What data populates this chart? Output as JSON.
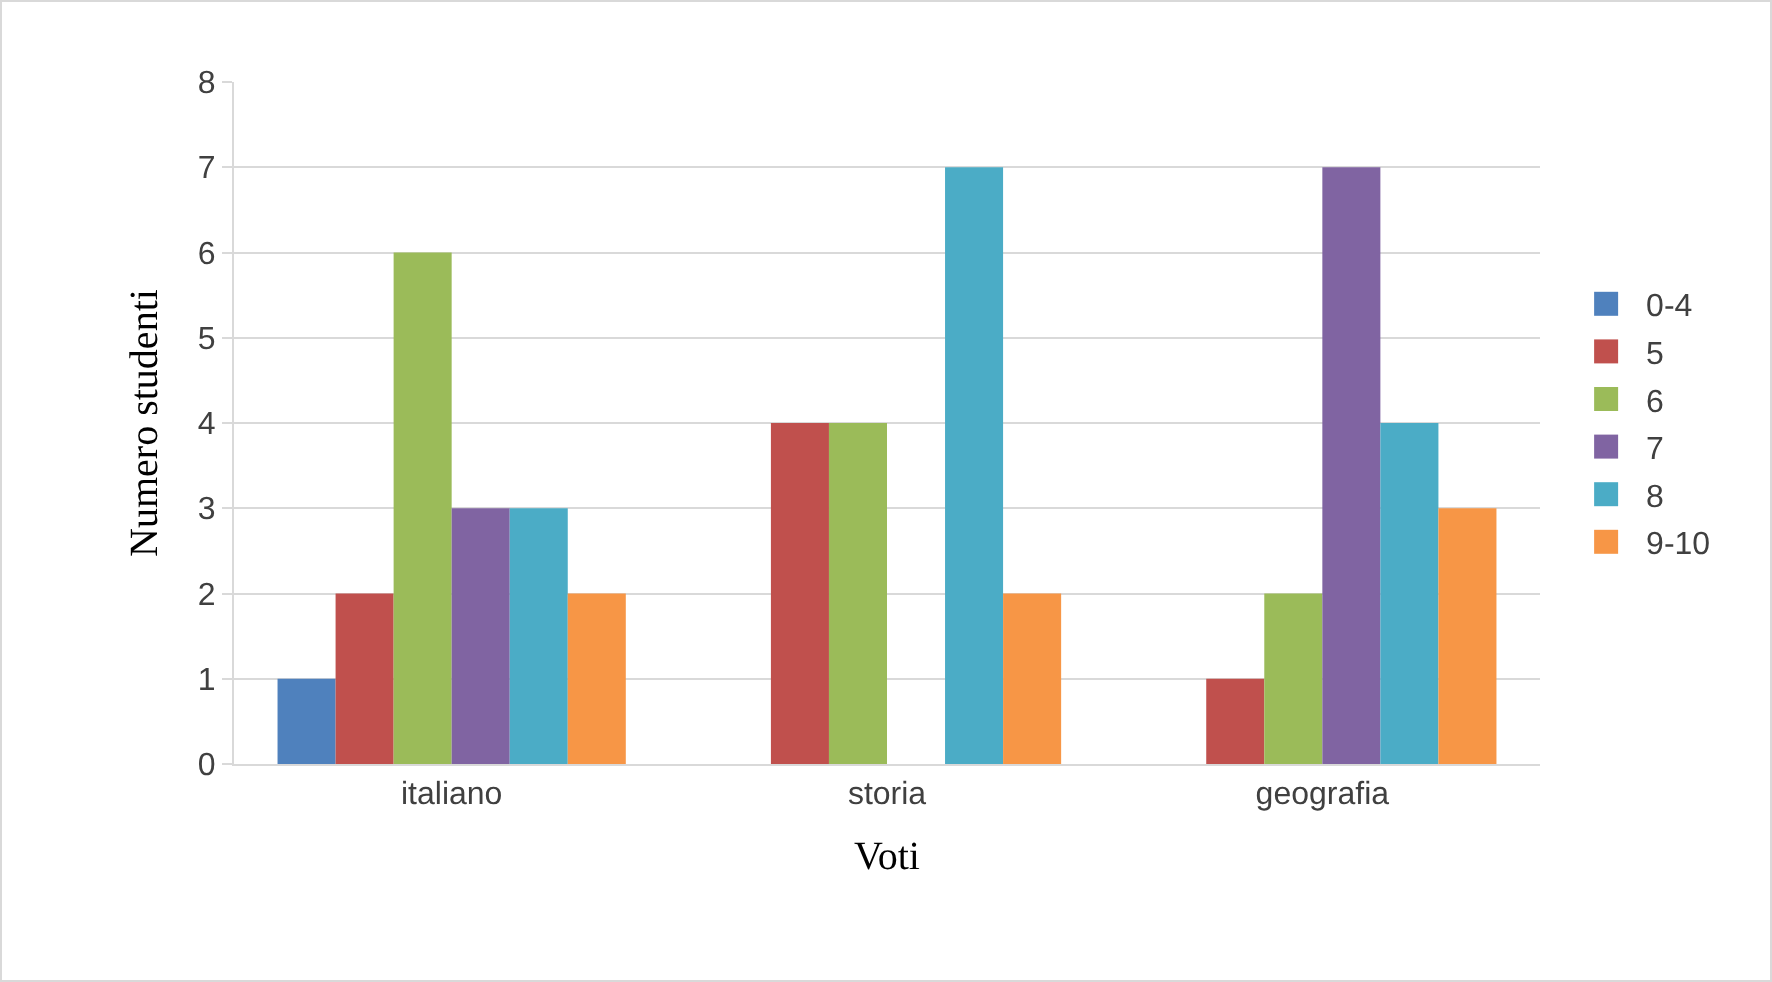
{
  "chart_data": {
    "type": "bar",
    "xlabel": "Voti",
    "ylabel": "Numero studenti",
    "categories": [
      "italiano",
      "storia",
      "geografia"
    ],
    "series": [
      {
        "name": "0-4",
        "color": "#4f81bd",
        "values": [
          1,
          0,
          0
        ]
      },
      {
        "name": "5",
        "color": "#c0504d",
        "values": [
          2,
          4,
          1
        ]
      },
      {
        "name": "6",
        "color": "#9bbb59",
        "values": [
          6,
          4,
          2
        ]
      },
      {
        "name": "7",
        "color": "#8064a2",
        "values": [
          3,
          0,
          7
        ]
      },
      {
        "name": "8",
        "color": "#4bacc6",
        "values": [
          3,
          7,
          4
        ]
      },
      {
        "name": "9-10",
        "color": "#f79646",
        "values": [
          2,
          2,
          3
        ]
      }
    ],
    "ylim": [
      0,
      8
    ],
    "yticks": [
      0,
      1,
      2,
      3,
      4,
      5,
      6,
      7,
      8
    ],
    "grid": "y",
    "legend": "right"
  }
}
